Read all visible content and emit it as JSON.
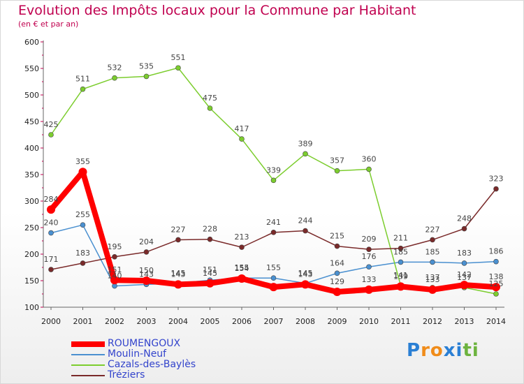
{
  "header": {
    "title": "Evolution des Impôts locaux pour la Commune par Habitant",
    "subtitle": "(en € et par an)"
  },
  "logo": {
    "letters": [
      "P",
      "r",
      "o",
      "x",
      "i",
      "t",
      "i"
    ],
    "colors": [
      "#2a7fd4",
      "#f08c1a",
      "#f08c1a",
      "#2a7fd4",
      "#2a7fd4",
      "#6db33f",
      "#6db33f"
    ]
  },
  "chart_data": {
    "type": "line",
    "title": "Evolution des Impôts locaux pour la Commune par Habitant",
    "subtitle": "(en € et par an)",
    "x": [
      "2000",
      "2001",
      "2002",
      "2003",
      "2004",
      "2005",
      "2006",
      "2007",
      "2008",
      "2009",
      "2010",
      "2011",
      "2012",
      "2013",
      "2014"
    ],
    "ylim": [
      100,
      600
    ],
    "yticks": [
      100,
      150,
      200,
      250,
      300,
      350,
      400,
      450,
      500,
      550,
      600
    ],
    "grid": false,
    "legend_position": "bottom-left",
    "series": [
      {
        "name": "ROUMENGOUX",
        "color": "#ff0000",
        "width": 8,
        "values": [
          284,
          355,
          151,
          150,
          143,
          145,
          154,
          138,
          143,
          129,
          133,
          139,
          133,
          142,
          138
        ],
        "labels": [
          "284",
          "355",
          "151",
          "150",
          "143",
          "145",
          "154",
          "",
          "143",
          "129",
          "133",
          "139",
          "133",
          "142",
          "138"
        ]
      },
      {
        "name": "Moulin-Neuf",
        "color": "#4a90d0",
        "width": 1.5,
        "values": [
          240,
          255,
          140,
          143,
          145,
          151,
          155,
          155,
          145,
          164,
          176,
          185,
          185,
          183,
          186
        ],
        "labels": [
          "240",
          "255",
          "140",
          "143",
          "145",
          "151",
          "155",
          "155",
          "145",
          "164",
          "176",
          "185",
          "185",
          "183",
          "186"
        ]
      },
      {
        "name": "Cazals-des-Baylès",
        "color": "#7ccd2e",
        "width": 1.5,
        "values": [
          425,
          511,
          532,
          535,
          551,
          475,
          417,
          339,
          389,
          357,
          360,
          141,
          137,
          137,
          125
        ],
        "labels": [
          "425",
          "511",
          "532",
          "535",
          "551",
          "475",
          "417",
          "339",
          "389",
          "357",
          "360",
          "141",
          "137",
          "137",
          "125"
        ]
      },
      {
        "name": "Tréziers",
        "color": "#7a2a2a",
        "width": 1.5,
        "values": [
          171,
          183,
          195,
          204,
          227,
          228,
          213,
          241,
          244,
          215,
          209,
          211,
          227,
          248,
          323
        ],
        "labels": [
          "171",
          "183",
          "195",
          "204",
          "227",
          "228",
          "213",
          "241",
          "244",
          "215",
          "209",
          "211",
          "227",
          "248",
          "323"
        ]
      }
    ]
  }
}
